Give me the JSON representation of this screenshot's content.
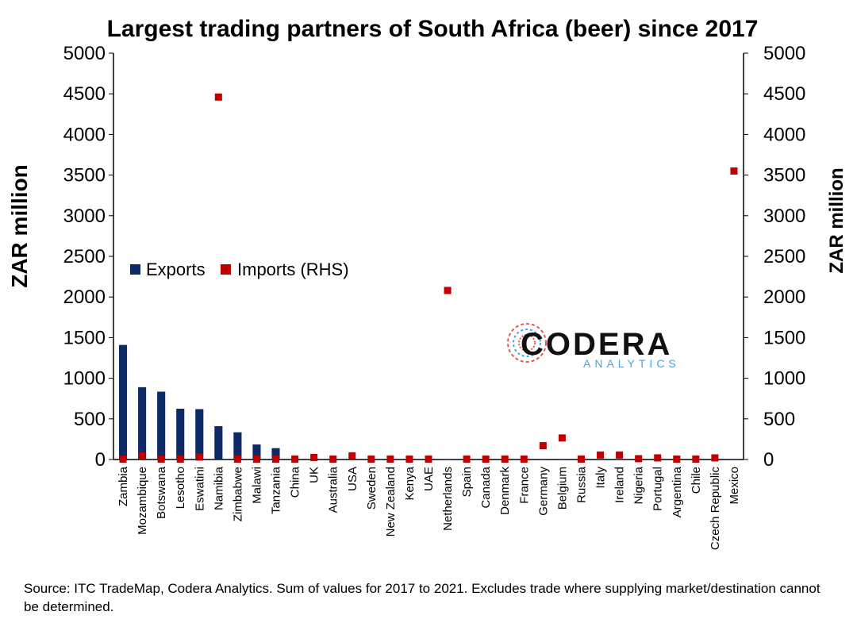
{
  "chart_data": {
    "type": "bar",
    "title": "Largest trading partners of South Africa (beer) since 2017",
    "ylabel": "ZAR million",
    "ylabel_right": "ZAR million",
    "ylim": [
      0,
      5000
    ],
    "yticks": [
      "0",
      "500",
      "1000",
      "1500",
      "2000",
      "2500",
      "3000",
      "3500",
      "4000",
      "4500",
      "5000"
    ],
    "legend_position": "middle-left",
    "categories": [
      "Zambia",
      "Mozambique",
      "Botswana",
      "Lesotho",
      "Eswatini",
      "Namibia",
      "Zimbabwe",
      "Malawi",
      "Tanzania",
      "China",
      "UK",
      "Australia",
      "USA",
      "Sweden",
      "New Zealand",
      "Kenya",
      "UAE",
      "Netherlands",
      "Spain",
      "Canada",
      "Denmark",
      "France",
      "Germany",
      "Belgium",
      "Russia",
      "Italy",
      "Ireland",
      "Nigeria",
      "Portugal",
      "Argentina",
      "Chile",
      "Czech Republic",
      "Mexico"
    ],
    "series": [
      {
        "name": "Exports",
        "color": "#0b2a66",
        "marker": "bar",
        "values": [
          1410,
          890,
          835,
          625,
          620,
          410,
          335,
          185,
          140,
          5,
          10,
          5,
          5,
          5,
          5,
          5,
          5,
          5,
          5,
          5,
          5,
          5,
          5,
          5,
          5,
          5,
          5,
          5,
          5,
          5,
          5,
          5,
          5
        ]
      },
      {
        "name": "Imports (RHS)",
        "color": "#c00000",
        "marker": "square",
        "values": [
          5,
          45,
          5,
          5,
          30,
          4460,
          5,
          5,
          5,
          5,
          25,
          5,
          45,
          5,
          5,
          5,
          5,
          2080,
          5,
          5,
          5,
          5,
          170,
          265,
          5,
          55,
          55,
          10,
          20,
          5,
          5,
          20,
          3550
        ]
      }
    ]
  },
  "logo": {
    "main": "CODERA",
    "sub": "ANALYTICS"
  },
  "source_note": "Source: ITC TradeMap, Codera Analytics. Sum of values for 2017 to 2021. Excludes trade where supplying market/destination cannot be determined."
}
